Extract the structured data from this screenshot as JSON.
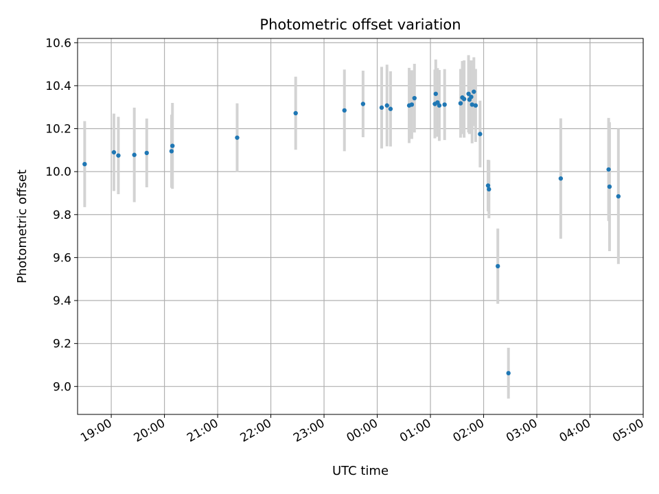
{
  "chart_data": {
    "type": "scatter",
    "title": "Photometric offset variation",
    "xlabel": "UTC time",
    "ylabel": "Photometric offset",
    "x_axis": {
      "kind": "time",
      "min": "18:22",
      "max": "05:00",
      "ticks": [
        "19:00",
        "20:00",
        "21:00",
        "22:00",
        "23:00",
        "00:00",
        "01:00",
        "02:00",
        "03:00",
        "04:00",
        "05:00"
      ]
    },
    "y_axis": {
      "min": 8.87,
      "max": 10.62,
      "ticks": [
        "9.0",
        "9.2",
        "9.4",
        "9.6",
        "9.8",
        "10.0",
        "10.2",
        "10.4",
        "10.6"
      ]
    },
    "grid": true,
    "colors": {
      "point": "#1f77b4",
      "errorbar": "#d3d3d3",
      "grid": "#b0b0b0"
    },
    "points": [
      {
        "x": "18:30",
        "y": 10.035,
        "err": 0.2
      },
      {
        "x": "19:03",
        "y": 10.09,
        "err": 0.18
      },
      {
        "x": "19:08",
        "y": 10.075,
        "err": 0.18
      },
      {
        "x": "19:26",
        "y": 10.078,
        "err": 0.22
      },
      {
        "x": "19:40",
        "y": 10.087,
        "err": 0.16
      },
      {
        "x": "20:08",
        "y": 10.095,
        "err": 0.17
      },
      {
        "x": "20:09",
        "y": 10.12,
        "err": 0.2
      },
      {
        "x": "21:22",
        "y": 10.158,
        "err": 0.16
      },
      {
        "x": "22:28",
        "y": 10.272,
        "err": 0.17
      },
      {
        "x": "23:23",
        "y": 10.285,
        "err": 0.19
      },
      {
        "x": "23:44",
        "y": 10.315,
        "err": 0.155
      },
      {
        "x": "00:05",
        "y": 10.298,
        "err": 0.19
      },
      {
        "x": "00:11",
        "y": 10.308,
        "err": 0.19
      },
      {
        "x": "00:15",
        "y": 10.292,
        "err": 0.175
      },
      {
        "x": "00:36",
        "y": 10.308,
        "err": 0.175
      },
      {
        "x": "00:39",
        "y": 10.312,
        "err": 0.16
      },
      {
        "x": "00:42",
        "y": 10.342,
        "err": 0.16
      },
      {
        "x": "01:05",
        "y": 10.315,
        "err": 0.16
      },
      {
        "x": "01:06",
        "y": 10.362,
        "err": 0.16
      },
      {
        "x": "01:08",
        "y": 10.322,
        "err": 0.16
      },
      {
        "x": "01:10",
        "y": 10.308,
        "err": 0.165
      },
      {
        "x": "01:16",
        "y": 10.312,
        "err": 0.165
      },
      {
        "x": "01:34",
        "y": 10.318,
        "err": 0.16
      },
      {
        "x": "01:36",
        "y": 10.345,
        "err": 0.17
      },
      {
        "x": "01:38",
        "y": 10.338,
        "err": 0.18
      },
      {
        "x": "01:43",
        "y": 10.362,
        "err": 0.18
      },
      {
        "x": "01:44",
        "y": 10.335,
        "err": 0.16
      },
      {
        "x": "01:46",
        "y": 10.348,
        "err": 0.17
      },
      {
        "x": "01:47",
        "y": 10.312,
        "err": 0.18
      },
      {
        "x": "01:49",
        "y": 10.372,
        "err": 0.16
      },
      {
        "x": "01:51",
        "y": 10.308,
        "err": 0.17
      },
      {
        "x": "01:56",
        "y": 10.175,
        "err": 0.155
      },
      {
        "x": "02:05",
        "y": 9.935,
        "err": 0.12
      },
      {
        "x": "02:06",
        "y": 9.918,
        "err": 0.135
      },
      {
        "x": "02:16",
        "y": 9.56,
        "err": 0.175
      },
      {
        "x": "02:28",
        "y": 9.062,
        "err": 0.118
      },
      {
        "x": "03:27",
        "y": 9.968,
        "err": 0.28
      },
      {
        "x": "04:21",
        "y": 10.01,
        "err": 0.24
      },
      {
        "x": "04:22",
        "y": 9.93,
        "err": 0.3
      },
      {
        "x": "04:32",
        "y": 9.885,
        "err": 0.315
      }
    ]
  }
}
